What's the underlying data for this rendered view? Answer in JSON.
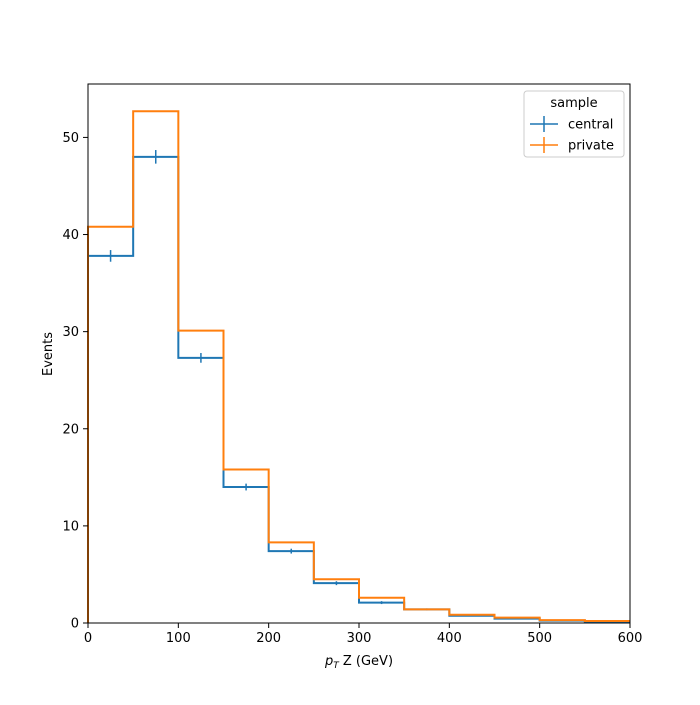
{
  "chart_data": {
    "type": "histogram-step",
    "xlabel_main": "p",
    "xlabel_sub": "T",
    "xlabel_rest": " Z (GeV)",
    "ylabel": "Events",
    "xlim": [
      0,
      600
    ],
    "ylim": [
      0,
      55.5
    ],
    "xticks": [
      0,
      100,
      200,
      300,
      400,
      500,
      600
    ],
    "yticks": [
      0,
      10,
      20,
      30,
      40,
      50
    ],
    "bin_edges": [
      0,
      50,
      100,
      150,
      200,
      250,
      300,
      350,
      400,
      450,
      500,
      550,
      600
    ],
    "grid": false,
    "legend_title": "sample",
    "legend_position": "top-right",
    "series": [
      {
        "name": "central",
        "color": "#1f77b4",
        "values": [
          37.8,
          48.0,
          27.3,
          14.0,
          7.4,
          4.1,
          2.1,
          1.4,
          0.75,
          0.45,
          0.25,
          0.15
        ],
        "errors": [
          0.6,
          0.7,
          0.5,
          0.35,
          0.25,
          0.2,
          0.15,
          0.1,
          0.08,
          0.06,
          0.05,
          0.04
        ]
      },
      {
        "name": "private",
        "color": "#ff7f0e",
        "values": [
          40.8,
          52.7,
          30.1,
          15.8,
          8.3,
          4.5,
          2.6,
          1.4,
          0.85,
          0.55,
          0.3,
          0.2
        ],
        "errors": [
          0.0,
          0.0,
          0.0,
          0.0,
          0.0,
          0.0,
          0.0,
          0.0,
          0.0,
          0.0,
          0.0,
          0.0
        ]
      }
    ]
  }
}
